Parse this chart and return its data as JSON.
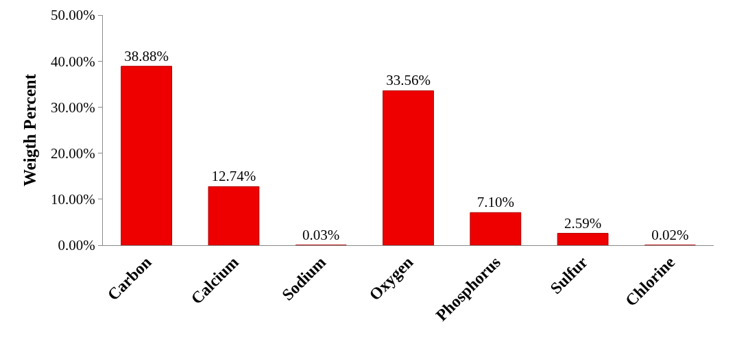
{
  "chart_data": {
    "type": "bar",
    "ylabel": "Weigth Percent",
    "categories": [
      "Carbon",
      "Calcium",
      "Sodium",
      "Oxygen",
      "Phosphorus",
      "Sulfur",
      "Chlorine"
    ],
    "values": [
      38.88,
      12.74,
      0.03,
      33.56,
      7.1,
      2.59,
      0.02
    ],
    "value_labels": [
      "38.88%",
      "12.74%",
      "0.03%",
      "33.56%",
      "7.10%",
      "2.59%",
      "0.02%"
    ],
    "color": "#ee0000",
    "ylim": [
      0,
      50
    ],
    "yticks": [
      {
        "value": 0,
        "label": "0.00%"
      },
      {
        "value": 10,
        "label": "10.00%"
      },
      {
        "value": 20,
        "label": "20.00%"
      },
      {
        "value": 30,
        "label": "30.00%"
      },
      {
        "value": 40,
        "label": "40.00%"
      },
      {
        "value": 50,
        "label": "50.00%"
      }
    ],
    "grid": false
  }
}
